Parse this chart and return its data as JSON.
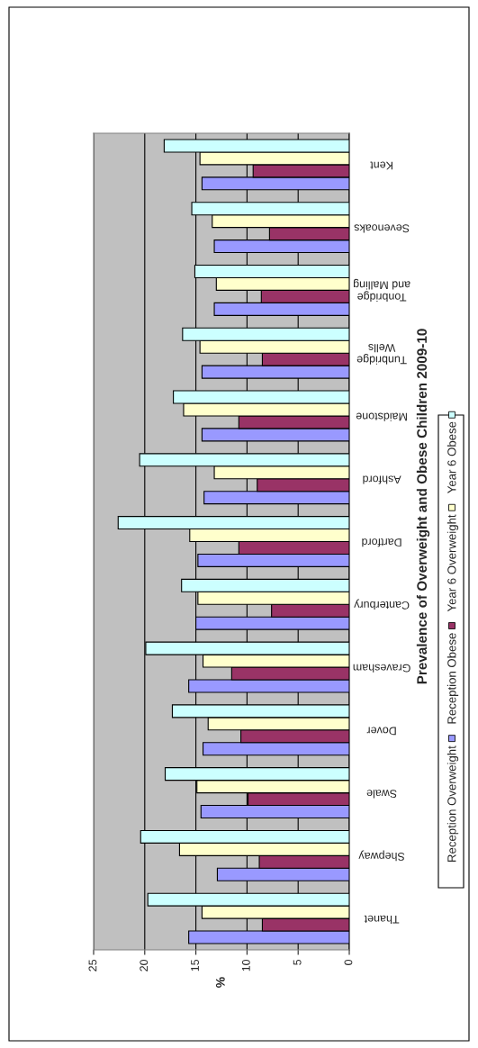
{
  "chart_data": {
    "type": "bar",
    "orientation": "horizontal",
    "title": "Prevalence of Overweight and Obese Children 2009-10",
    "ylabel": "%",
    "categories": [
      "Kent",
      "Sevenoaks",
      "Tonbridge and Malling",
      "Tunbridge Wells",
      "Maidstone",
      "Ashford",
      "Dartford",
      "Canterbury",
      "Gravesham",
      "Dover",
      "Swale",
      "Shepway",
      "Thanet"
    ],
    "series": [
      {
        "name": "Reception Overweight",
        "color": "#9999ff",
        "values": [
          14.4,
          13.2,
          13.2,
          14.4,
          14.4,
          14.2,
          14.8,
          15.0,
          15.7,
          14.3,
          14.5,
          12.9,
          15.7
        ]
      },
      {
        "name": "Reception Obese",
        "color": "#993366",
        "values": [
          9.4,
          7.8,
          8.6,
          8.5,
          10.8,
          9.0,
          10.8,
          7.6,
          11.5,
          10.6,
          9.9,
          8.8,
          8.5
        ]
      },
      {
        "name": "Year 6 Overweight",
        "color": "#ffffcc",
        "values": [
          14.6,
          13.4,
          13.0,
          14.6,
          16.2,
          13.2,
          15.6,
          14.8,
          14.3,
          13.8,
          14.9,
          16.6,
          14.4
        ]
      },
      {
        "name": "Year 6 Obese",
        "color": "#ccffff",
        "values": [
          18.1,
          15.4,
          15.1,
          16.3,
          17.2,
          20.5,
          22.6,
          16.4,
          19.9,
          17.3,
          18.0,
          20.4,
          19.7
        ]
      }
    ],
    "xlim": [
      25,
      0
    ],
    "xticks": [
      0,
      5,
      10,
      15,
      20,
      25
    ],
    "grid": "x",
    "legend": "right"
  }
}
